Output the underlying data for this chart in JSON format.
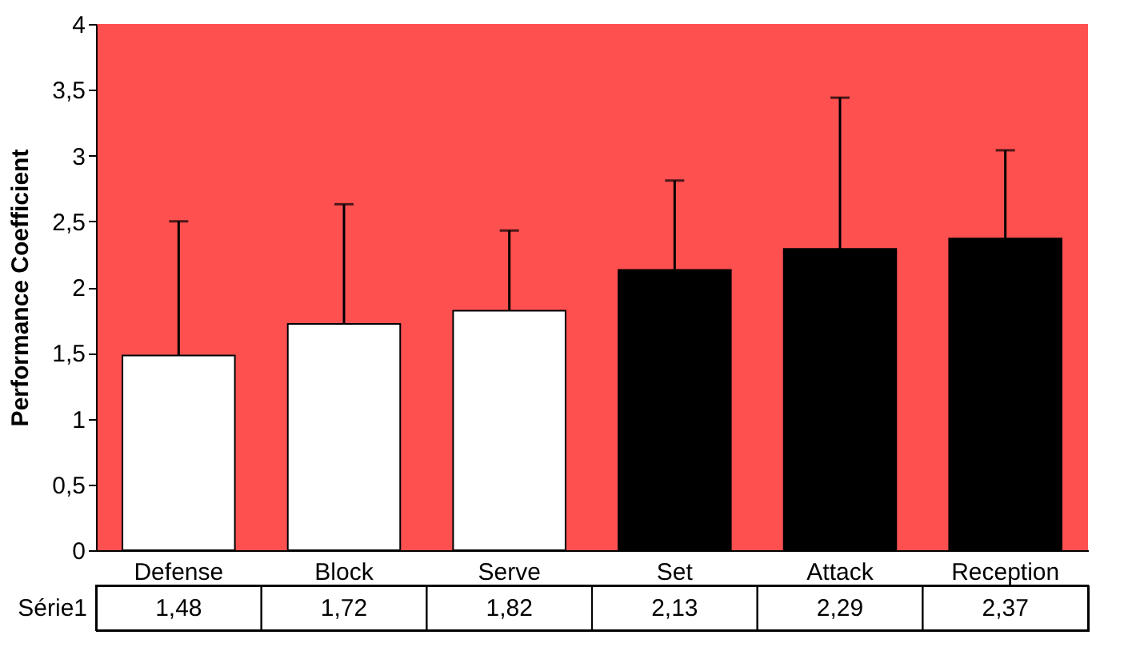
{
  "chart_data": {
    "type": "bar",
    "ylabel": "Performance Coefficient",
    "categories": [
      "Defense",
      "Block",
      "Serve",
      "Set",
      "Attack",
      "Reception"
    ],
    "series": [
      {
        "name": "Série1",
        "colors": [
          "#ffffff",
          "#ffffff",
          "#ffffff",
          "#000000",
          "#000000",
          "#000000"
        ],
        "values": [
          1.48,
          1.72,
          1.82,
          2.13,
          2.29,
          2.37
        ],
        "value_labels": [
          "1,48",
          "1,72",
          "1,82",
          "2,13",
          "2,29",
          "2,37"
        ],
        "errors": [
          [
            1.48,
            2.5
          ],
          [
            1.72,
            2.63
          ],
          [
            1.82,
            2.43
          ],
          [
            2.13,
            2.81
          ],
          [
            2.29,
            3.44
          ],
          [
            2.37,
            3.04
          ]
        ]
      }
    ],
    "ylim": [
      0,
      4
    ],
    "yticks": [
      0,
      {
        "value": 0.5,
        "label": "0,5"
      },
      1,
      {
        "value": 1.5,
        "label": "1,5"
      },
      2,
      {
        "value": 2.5,
        "label": "2,5"
      },
      3,
      {
        "value": 3.5,
        "label": "3,5"
      },
      4
    ],
    "grid": false
  }
}
